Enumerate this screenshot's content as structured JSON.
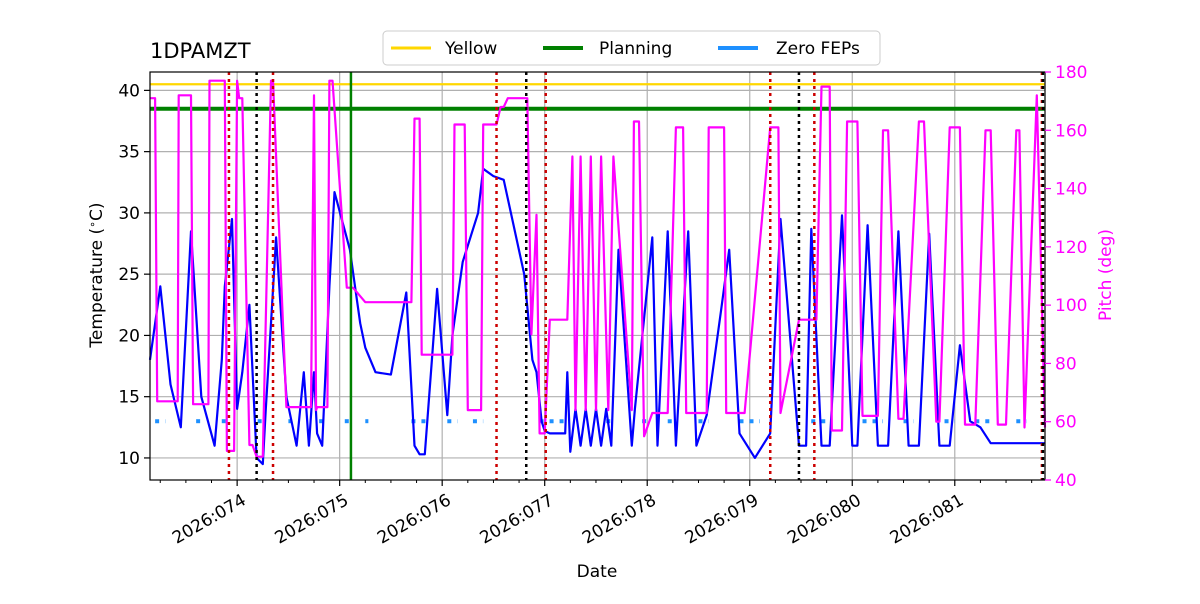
{
  "chart_data": {
    "type": "line",
    "title": "1DPAMZT",
    "xlabel": "Date",
    "ylabel": "Temperature ($^\\circ$C)",
    "ylabel_display": "Temperature (",
    "ylabel_degree": "∘",
    "ylabel_unit": "C)",
    "y2label": "Pitch (deg)",
    "xlim": [
      73.15,
      81.88
    ],
    "ylim": [
      8.2,
      41.5
    ],
    "y2lim": [
      40,
      180
    ],
    "grid": true,
    "legend_placement": "top-center",
    "x_ticks": [
      {
        "value": 74,
        "label": "2026:074"
      },
      {
        "value": 75,
        "label": "2026:075"
      },
      {
        "value": 76,
        "label": "2026:076"
      },
      {
        "value": 77,
        "label": "2026:077"
      },
      {
        "value": 78,
        "label": "2026:078"
      },
      {
        "value": 79,
        "label": "2026:079"
      },
      {
        "value": 80,
        "label": "2026:080"
      },
      {
        "value": 81,
        "label": "2026:081"
      }
    ],
    "y_ticks": [
      10,
      15,
      20,
      25,
      30,
      35,
      40
    ],
    "y2_ticks": [
      40,
      60,
      80,
      100,
      120,
      140,
      160,
      180
    ],
    "limits": [
      {
        "name": "Yellow",
        "value": 40.5,
        "color": "#FFD700"
      },
      {
        "name": "Planning",
        "value": 38.5,
        "color": "#008000"
      }
    ],
    "zero_feps": {
      "name": "Zero FEPs",
      "color": "#1E90FF",
      "value": 13.0,
      "segments": [
        [
          73.2,
          73.3
        ],
        [
          73.6,
          73.65
        ],
        [
          73.85,
          73.9
        ],
        [
          74.2,
          74.25
        ],
        [
          74.5,
          74.53
        ],
        [
          74.8,
          74.85
        ],
        [
          75.05,
          75.1
        ],
        [
          75.25,
          75.28
        ],
        [
          75.7,
          75.85
        ],
        [
          76.05,
          76.15
        ],
        [
          76.3,
          76.4
        ],
        [
          76.95,
          77.2
        ],
        [
          77.6,
          77.65
        ],
        [
          77.95,
          78.0
        ],
        [
          78.2,
          78.3
        ],
        [
          78.5,
          78.6
        ],
        [
          78.9,
          79.1
        ],
        [
          79.6,
          79.8
        ],
        [
          80.1,
          80.3
        ],
        [
          80.5,
          80.6
        ],
        [
          80.9,
          81.0
        ],
        [
          81.2,
          81.35
        ],
        [
          81.6,
          81.7
        ]
      ]
    },
    "command_lines": {
      "red": [
        73.92,
        74.35,
        76.53,
        77.01,
        79.2,
        79.63,
        81.85
      ],
      "black": [
        74.19,
        76.82,
        79.48,
        81.86
      ],
      "green": [
        75.11
      ]
    },
    "series": [
      {
        "name": "",
        "axis": "left",
        "color": "#0000FF",
        "x": [
          73.15,
          73.25,
          73.35,
          73.45,
          73.55,
          73.65,
          73.78,
          73.85,
          73.88,
          73.95,
          74.0,
          74.05,
          74.12,
          74.19,
          74.25,
          74.28,
          74.33,
          74.38,
          74.48,
          74.58,
          74.65,
          74.7,
          74.75,
          74.78,
          74.83,
          74.9,
          74.95,
          75.1,
          75.15,
          75.2,
          75.25,
          75.35,
          75.5,
          75.65,
          75.73,
          75.78,
          75.83,
          75.9,
          75.95,
          76.05,
          76.1,
          76.2,
          76.35,
          76.4,
          76.5,
          76.6,
          76.8,
          76.88,
          76.92,
          76.97,
          77.0,
          77.05,
          77.2,
          77.22,
          77.25,
          77.3,
          77.35,
          77.4,
          77.45,
          77.5,
          77.55,
          77.6,
          77.65,
          77.72,
          77.85,
          77.88,
          78.05,
          78.1,
          78.2,
          78.28,
          78.4,
          78.48,
          78.58,
          78.72,
          78.8,
          78.9,
          79.05,
          79.2,
          79.3,
          79.48,
          79.55,
          79.6,
          79.7,
          79.78,
          79.9,
          80.0,
          80.05,
          80.15,
          80.25,
          80.35,
          80.45,
          80.55,
          80.65,
          80.75,
          80.85,
          80.95,
          81.05,
          81.15,
          81.25,
          81.35,
          81.45,
          81.55,
          81.65,
          81.73,
          81.8,
          81.88
        ],
        "y": [
          18,
          24,
          16,
          12.5,
          28.5,
          15,
          11,
          18,
          24,
          29.5,
          14,
          17,
          22.5,
          10,
          9.5,
          14,
          21,
          28,
          15,
          11,
          17,
          11,
          17,
          12,
          11,
          24,
          31.7,
          27,
          24,
          21,
          19,
          17,
          16.8,
          23.5,
          11,
          10.3,
          10.3,
          18,
          23.8,
          13.5,
          20,
          26,
          30,
          33.6,
          33,
          32.7,
          25,
          18,
          17,
          13,
          12.2,
          12,
          12,
          17,
          10.5,
          14,
          11,
          14,
          11,
          14,
          11,
          14,
          11,
          27,
          11,
          14,
          28,
          11,
          28.5,
          11,
          28.5,
          11,
          13.5,
          22,
          27,
          12,
          10,
          12,
          29.5,
          11,
          11,
          28.7,
          11,
          11,
          29.8,
          11,
          11,
          29,
          11,
          11,
          28.5,
          11,
          11,
          28.3,
          11,
          11,
          19.2,
          13,
          12.5,
          11.2,
          11.2,
          11.2,
          11.2,
          11.2,
          11.2,
          11.2
        ]
      },
      {
        "name": "",
        "axis": "right",
        "color": "#FF00FF",
        "x": [
          73.15,
          73.2,
          73.22,
          73.42,
          73.43,
          73.55,
          73.57,
          73.72,
          73.73,
          73.88,
          73.9,
          73.92,
          73.93,
          73.97,
          74.0,
          74.02,
          74.05,
          74.12,
          74.15,
          74.19,
          74.25,
          74.33,
          74.35,
          74.48,
          74.5,
          74.72,
          74.75,
          74.77,
          74.78,
          74.88,
          74.9,
          74.93,
          75.07,
          75.11,
          75.13,
          75.25,
          75.27,
          75.7,
          75.73,
          75.78,
          75.8,
          76.1,
          76.12,
          76.22,
          76.25,
          76.38,
          76.4,
          76.53,
          76.57,
          76.6,
          76.64,
          76.83,
          76.87,
          76.92,
          76.95,
          77.0,
          77.05,
          77.22,
          77.27,
          77.3,
          77.35,
          77.4,
          77.45,
          77.5,
          77.55,
          77.62,
          77.67,
          77.85,
          77.87,
          77.92,
          77.97,
          78.05,
          78.2,
          78.28,
          78.35,
          78.38,
          78.58,
          78.6,
          78.75,
          78.77,
          78.95,
          79.2,
          79.28,
          79.3,
          79.48,
          79.65,
          79.7,
          79.78,
          79.8,
          79.9,
          79.95,
          80.05,
          80.1,
          80.25,
          80.3,
          80.35,
          80.45,
          80.5,
          80.65,
          80.7,
          80.82,
          80.85,
          80.95,
          81.05,
          81.1,
          81.2,
          81.3,
          81.35,
          81.42,
          81.5,
          81.6,
          81.63,
          81.68,
          81.8,
          81.88
        ],
        "y": [
          171,
          171,
          67,
          67,
          172,
          172,
          66,
          66,
          177,
          177,
          50,
          50,
          50,
          50,
          177,
          171,
          171,
          52,
          52,
          48,
          48,
          177,
          177,
          65,
          65,
          65,
          172,
          64,
          65,
          65,
          177,
          177,
          106,
          106,
          106,
          101,
          101,
          101,
          164,
          164,
          83,
          83,
          162,
          162,
          64,
          64,
          162,
          162,
          168,
          168,
          171,
          171,
          90,
          131,
          56,
          56,
          95,
          95,
          151,
          64,
          151,
          64,
          151,
          64,
          151,
          64,
          151,
          64,
          163,
          163,
          55,
          63,
          63,
          161,
          161,
          63,
          63,
          161,
          161,
          63,
          63,
          161,
          161,
          63,
          95,
          95,
          175,
          175,
          57,
          57,
          163,
          163,
          62,
          62,
          160,
          160,
          61,
          61,
          163,
          163,
          60,
          60,
          161,
          161,
          59,
          59,
          160,
          160,
          59,
          59,
          160,
          160,
          58,
          172,
          58
        ]
      }
    ]
  }
}
